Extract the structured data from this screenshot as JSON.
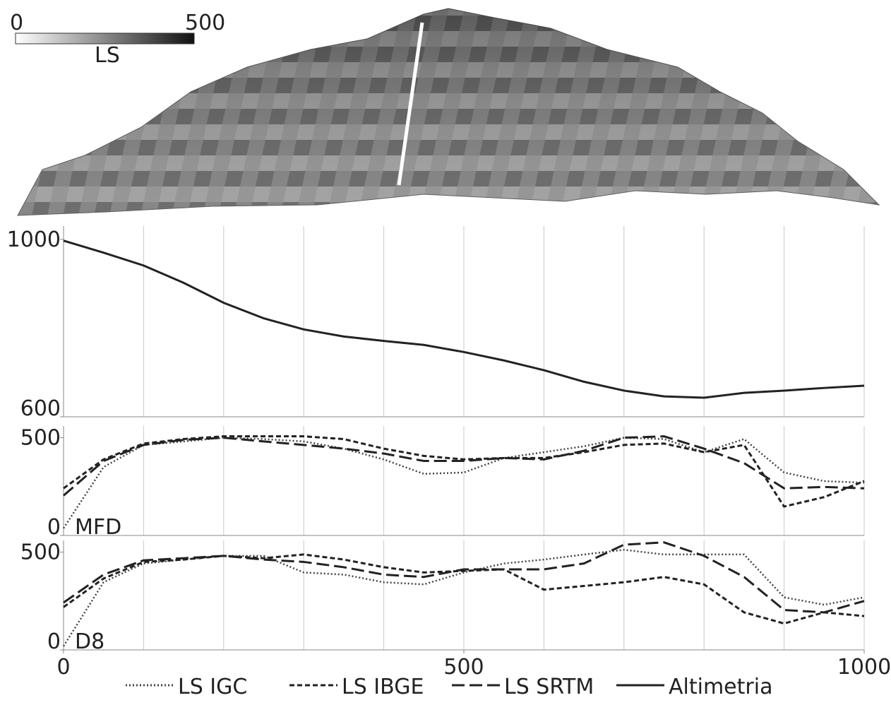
{
  "colorbar": {
    "min": 0,
    "max": 500,
    "label": "LS"
  },
  "chart_data": [
    {
      "type": "line",
      "x": [
        0,
        50,
        100,
        150,
        200,
        250,
        300,
        350,
        400,
        450,
        500,
        550,
        600,
        650,
        700,
        750,
        800,
        850,
        900,
        950,
        1000
      ],
      "xlim": [
        0,
        1000
      ],
      "xgrid": [
        100,
        200,
        300,
        400,
        500,
        600,
        700,
        800,
        900,
        1000
      ],
      "ylim": [
        600,
        1030
      ],
      "yticks": [
        600,
        1000
      ],
      "series": [
        {
          "name": "Altimetria",
          "color": "#222222",
          "dash": "solid",
          "values": [
            997,
            970,
            941,
            902,
            857,
            822,
            797,
            781,
            771,
            762,
            746,
            727,
            705,
            679,
            659,
            646,
            643,
            654,
            659,
            665,
            670
          ]
        }
      ]
    },
    {
      "type": "line",
      "annotation": "MFD",
      "x": [
        0,
        50,
        100,
        150,
        200,
        250,
        300,
        350,
        400,
        450,
        500,
        550,
        600,
        650,
        700,
        750,
        800,
        850,
        900,
        950,
        1000
      ],
      "xlim": [
        0,
        1000
      ],
      "xgrid": [
        100,
        200,
        300,
        400,
        500,
        600,
        700,
        800,
        900,
        1000
      ],
      "ylim": [
        0,
        560
      ],
      "yticks": [
        0,
        500
      ],
      "series": [
        {
          "name": "LS IGC",
          "color": "#444444",
          "dash": "dotted",
          "values": [
            37,
            350,
            463,
            481,
            500,
            493,
            481,
            444,
            389,
            315,
            322,
            396,
            426,
            456,
            500,
            493,
            426,
            493,
            322,
            278,
            270
          ]
        },
        {
          "name": "LS IBGE",
          "color": "#222222",
          "dash": "short-dash",
          "values": [
            241,
            389,
            470,
            493,
            507,
            507,
            507,
            493,
            444,
            407,
            389,
            396,
            396,
            426,
            463,
            470,
            426,
            463,
            148,
            196,
            278
          ]
        },
        {
          "name": "LS SRTM",
          "color": "#222222",
          "dash": "long-dash",
          "values": [
            204,
            381,
            463,
            489,
            500,
            481,
            463,
            444,
            419,
            381,
            381,
            396,
            389,
            433,
            500,
            507,
            444,
            370,
            241,
            248,
            241
          ]
        }
      ]
    },
    {
      "type": "line",
      "annotation": "D8",
      "x": [
        0,
        50,
        100,
        150,
        200,
        250,
        300,
        350,
        400,
        450,
        500,
        550,
        600,
        650,
        700,
        750,
        800,
        850,
        900,
        950,
        1000
      ],
      "xlim": [
        0,
        1000
      ],
      "xgrid": [
        100,
        200,
        300,
        400,
        500,
        600,
        700,
        800,
        900,
        1000
      ],
      "xticks": [
        0,
        500,
        1000
      ],
      "ylim": [
        0,
        560
      ],
      "yticks": [
        0,
        500
      ],
      "series": [
        {
          "color": "#444444",
          "dash": "dotted",
          "values": [
            19,
            346,
            442,
            462,
            481,
            481,
            396,
            385,
            346,
            335,
            396,
            442,
            462,
            488,
            512,
            488,
            488,
            488,
            269,
            231,
            269
          ]
        },
        {
          "color": "#222222",
          "dash": "short-dash",
          "values": [
            219,
            365,
            450,
            462,
            481,
            469,
            488,
            462,
            423,
            396,
            404,
            412,
            308,
            327,
            346,
            373,
            335,
            192,
            135,
            192,
            173
          ]
        },
        {
          "color": "#222222",
          "dash": "long-dash",
          "values": [
            242,
            385,
            458,
            469,
            481,
            462,
            450,
            423,
            385,
            373,
            412,
            412,
            412,
            442,
            538,
            550,
            481,
            373,
            204,
            192,
            250
          ]
        }
      ]
    }
  ]
}
